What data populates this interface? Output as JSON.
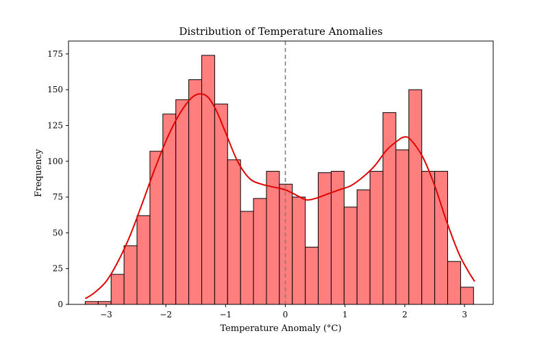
{
  "chart_data": {
    "type": "bar",
    "title": "Distribution of Temperature Anomalies",
    "xlabel": "Temperature Anomaly (°C)",
    "ylabel": "Frequency",
    "xlim": [
      -3.63,
      3.48
    ],
    "ylim": [
      0,
      184
    ],
    "xticks": [
      -3,
      -2,
      -1,
      0,
      1,
      2,
      3
    ],
    "xtick_labels": [
      "−3",
      "−2",
      "−1",
      "0",
      "1",
      "2",
      "3"
    ],
    "yticks": [
      0,
      25,
      50,
      75,
      100,
      125,
      150,
      175
    ],
    "ytick_labels": [
      "0",
      "25",
      "50",
      "75",
      "100",
      "125",
      "150",
      "175"
    ],
    "bin_start": -3.35,
    "bin_width": 0.2167,
    "values": [
      2,
      2,
      21,
      41,
      62,
      107,
      133,
      143,
      157,
      174,
      140,
      101,
      65,
      74,
      93,
      84,
      75,
      40,
      92,
      93,
      68,
      80,
      93,
      134,
      108,
      150,
      93,
      93,
      30,
      12
    ],
    "bar_color": "#ff7f7f",
    "edge_color": "#000000",
    "reference_line": {
      "x": 0,
      "style": "dashed",
      "color": "#808080"
    },
    "kde": {
      "color": "#e00000",
      "x": [
        -3.35,
        -3.2,
        -3.0,
        -2.8,
        -2.6,
        -2.4,
        -2.2,
        -2.0,
        -1.8,
        -1.6,
        -1.45,
        -1.3,
        -1.15,
        -1.0,
        -0.8,
        -0.6,
        -0.4,
        -0.2,
        0.0,
        0.2,
        0.35,
        0.5,
        0.7,
        0.9,
        1.1,
        1.3,
        1.5,
        1.7,
        1.9,
        2.0,
        2.1,
        2.3,
        2.5,
        2.7,
        2.9,
        3.05,
        3.17
      ],
      "y": [
        4,
        8,
        16,
        30,
        48,
        70,
        93,
        114,
        131,
        143,
        147,
        145,
        135,
        120,
        100,
        88,
        84,
        82,
        80,
        76,
        73,
        74,
        77,
        80,
        83,
        89,
        97,
        108,
        115,
        117,
        115,
        103,
        83,
        58,
        36,
        24,
        16
      ]
    },
    "grid": false
  }
}
